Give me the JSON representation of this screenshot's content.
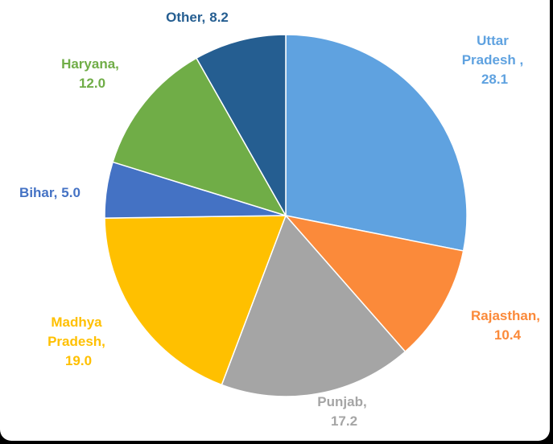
{
  "chart_data": {
    "type": "pie",
    "categories": [
      "Uttar Pradesh ,",
      "Rajasthan,",
      "Punjab,",
      "Madhya Pradesh,",
      "Bihar,",
      "Haryana,",
      "Other,"
    ],
    "values": [
      28.1,
      10.4,
      17.2,
      19.0,
      5.0,
      12.0,
      8.2
    ],
    "value_labels": [
      "28.1",
      "10.4",
      "17.2",
      "19.0",
      "5.0",
      "12.0",
      "8.2"
    ],
    "colors": [
      "#5fa2e0",
      "#fb8a3a",
      "#a5a5a5",
      "#ffc000",
      "#4472c4",
      "#70ad47",
      "#255e91"
    ]
  }
}
